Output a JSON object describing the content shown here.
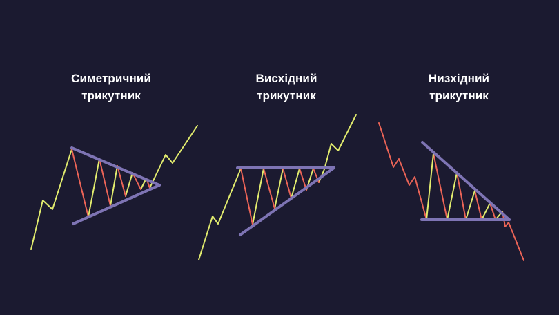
{
  "colors": {
    "background": "#1b1a30",
    "up_move": "#e2ec6e",
    "down_move": "#ec6457",
    "trendline": "#7e74b4",
    "caption_text": "#ffffff"
  },
  "patterns": [
    {
      "id": "symmetrical",
      "title_line1": "Симетричний",
      "title_line2": "трикутник"
    },
    {
      "id": "ascending",
      "title_line1": "Висхідний",
      "title_line2": "трикутник"
    },
    {
      "id": "descending",
      "title_line1": "Низхідний",
      "title_line2": "трикутник"
    }
  ]
}
